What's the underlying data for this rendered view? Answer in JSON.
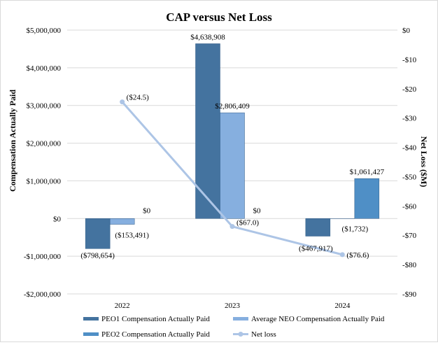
{
  "chart_data": {
    "type": "bar",
    "title": "CAP versus Net Loss",
    "ylabel": "Compensation Actually Paid",
    "y2label": "Net Loss ($M)",
    "categories": [
      "2022",
      "2023",
      "2024"
    ],
    "ylim": [
      -2000000,
      5000000
    ],
    "yticks": [
      5000000,
      4000000,
      3000000,
      2000000,
      1000000,
      0,
      -1000000,
      -2000000
    ],
    "ytick_labels": [
      "$5,000,000",
      "$4,000,000",
      "$3,000,000",
      "$2,000,000",
      "$1,000,000",
      "$0",
      "-$1,000,000",
      "-$2,000,000"
    ],
    "y2lim": [
      -90,
      0
    ],
    "y2ticks": [
      0,
      -10,
      -20,
      -30,
      -40,
      -50,
      -60,
      -70,
      -80,
      -90
    ],
    "y2tick_labels": [
      "$0",
      "-$10",
      "-$20",
      "-$30",
      "-$40",
      "-$50",
      "-$60",
      "-$70",
      "-$80",
      "-$90"
    ],
    "grid": true,
    "legend_position": "bottom",
    "series": [
      {
        "name": "PEO1 Compensation Actually Paid",
        "type": "bar",
        "axis": "left",
        "color": "#44739f",
        "values": [
          -798654,
          4638908,
          -467917
        ],
        "labels": [
          "($798,654)",
          "$4,638,908",
          "($467,917)"
        ]
      },
      {
        "name": "Average NEO Compensation Actually Paid",
        "type": "bar",
        "axis": "left",
        "color": "#86afdf",
        "values": [
          -153491,
          2806409,
          -1732
        ],
        "labels": [
          "($153,491)",
          "$2,806,409",
          "($1,732)"
        ]
      },
      {
        "name": "PEO2 Compensation Actually Paid",
        "type": "bar",
        "axis": "left",
        "color": "#4f8fc6",
        "values": [
          0,
          0,
          1061427
        ],
        "labels": [
          "$0",
          "$0",
          "$1,061,427"
        ]
      },
      {
        "name": "Net loss",
        "type": "line",
        "axis": "right",
        "color": "#adc5e6",
        "values": [
          -24.5,
          -67.0,
          -76.6
        ],
        "labels": [
          "($24.5)",
          "($67.0)",
          "($76.6)"
        ]
      }
    ]
  }
}
